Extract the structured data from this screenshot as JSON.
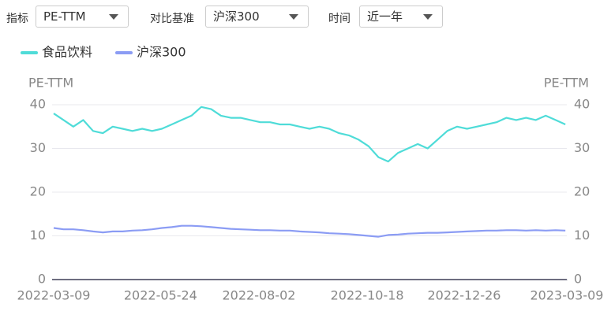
{
  "controls": [
    {
      "label": "指标",
      "value": "PE-TTM"
    },
    {
      "label": "对比基准",
      "value": "沪深300"
    },
    {
      "label": "时间",
      "value": "近一年"
    }
  ],
  "chart_data": {
    "type": "line",
    "ylabel": "PE-TTM",
    "y2label": "PE-TTM",
    "x": [
      "2022-03-09",
      "2022-03-16",
      "2022-03-23",
      "2022-03-30",
      "2022-04-06",
      "2022-04-13",
      "2022-04-20",
      "2022-04-27",
      "2022-05-04",
      "2022-05-11",
      "2022-05-18",
      "2022-05-25",
      "2022-06-01",
      "2022-06-08",
      "2022-06-15",
      "2022-06-22",
      "2022-06-29",
      "2022-07-06",
      "2022-07-13",
      "2022-07-20",
      "2022-07-27",
      "2022-08-03",
      "2022-08-10",
      "2022-08-17",
      "2022-08-24",
      "2022-08-31",
      "2022-09-07",
      "2022-09-14",
      "2022-09-21",
      "2022-09-28",
      "2022-10-05",
      "2022-10-12",
      "2022-10-19",
      "2022-10-26",
      "2022-11-02",
      "2022-11-09",
      "2022-11-16",
      "2022-11-23",
      "2022-11-30",
      "2022-12-07",
      "2022-12-14",
      "2022-12-21",
      "2022-12-28",
      "2023-01-04",
      "2023-01-11",
      "2023-01-18",
      "2023-01-25",
      "2023-02-01",
      "2023-02-08",
      "2023-02-15",
      "2023-02-22",
      "2023-03-01",
      "2023-03-08"
    ],
    "series": [
      {
        "name": "食品饮料",
        "color": "#4fdcd8",
        "values": [
          38,
          36.5,
          35,
          36.5,
          34,
          33.5,
          35,
          34.5,
          34,
          34.5,
          34,
          34.5,
          35.5,
          36.5,
          37.5,
          39.5,
          39,
          37.5,
          37,
          37,
          36.5,
          36,
          36,
          35.5,
          35.5,
          35,
          34.5,
          35,
          34.5,
          33.5,
          33,
          32,
          30.5,
          28,
          27,
          29,
          30,
          31,
          30,
          32,
          34,
          35,
          34.5,
          35,
          35.5,
          36,
          37,
          36.5,
          37,
          36.5,
          37.5,
          36.5,
          35.5
        ]
      },
      {
        "name": "沪深300",
        "color": "#8b9cf4",
        "values": [
          11.8,
          11.5,
          11.5,
          11.3,
          11,
          10.8,
          11,
          11,
          11.2,
          11.3,
          11.5,
          11.8,
          12,
          12.3,
          12.3,
          12.2,
          12,
          11.8,
          11.6,
          11.5,
          11.4,
          11.3,
          11.3,
          11.2,
          11.2,
          11,
          10.9,
          10.8,
          10.6,
          10.5,
          10.4,
          10.2,
          10,
          9.8,
          10.2,
          10.3,
          10.5,
          10.6,
          10.7,
          10.7,
          10.8,
          10.9,
          11,
          11.1,
          11.2,
          11.2,
          11.3,
          11.3,
          11.2,
          11.3,
          11.2,
          11.3,
          11.2
        ]
      }
    ],
    "xlim": [
      "2022-03-09",
      "2023-03-09"
    ],
    "xticks": [
      "2022-03-09",
      "2022-05-24",
      "2022-08-02",
      "2022-10-18",
      "2022-12-26",
      "2023-03-09"
    ],
    "ylim": [
      0,
      40
    ],
    "yticks": [
      0,
      10,
      20,
      30,
      40
    ],
    "y2lim": [
      0,
      40
    ],
    "y2ticks": [
      0,
      10,
      20,
      30,
      40
    ],
    "grid": true
  }
}
